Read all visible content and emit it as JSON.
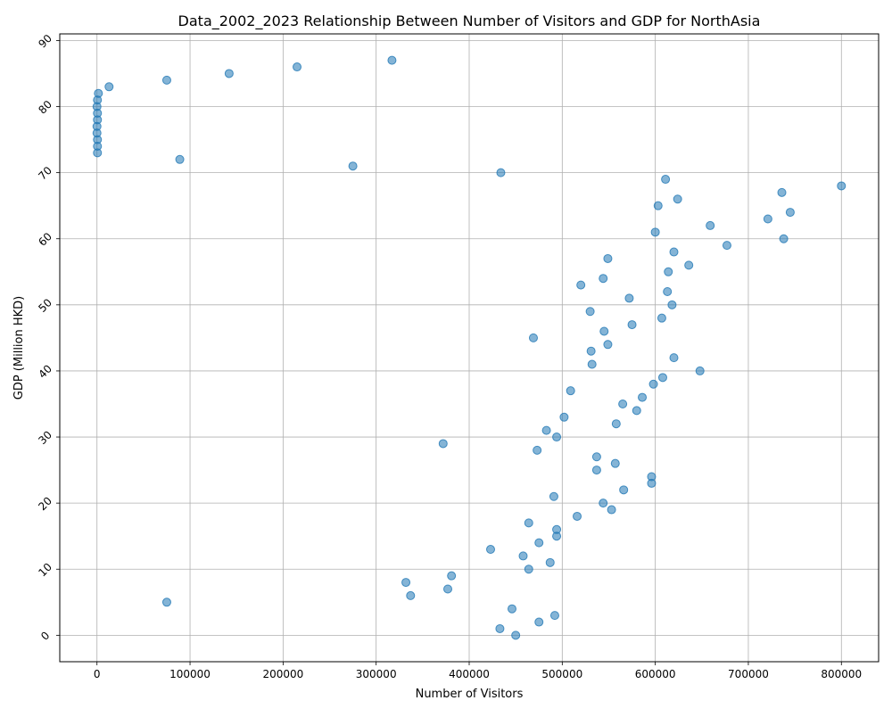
{
  "chart_data": {
    "type": "scatter",
    "title": "Data_2002_2023 Relationship Between Number of Visitors and GDP for NorthAsia",
    "xlabel": "Number of Visitors",
    "ylabel": "GDP (Million HKD)",
    "xlim": [
      -40000,
      840000
    ],
    "ylim": [
      -4,
      91
    ],
    "xticks": [
      0,
      100000,
      200000,
      300000,
      400000,
      500000,
      600000,
      700000,
      800000
    ],
    "yticks": [
      0,
      10,
      20,
      30,
      40,
      50,
      60,
      70,
      80,
      90
    ],
    "grid": true,
    "marker_color": "#1f77b4",
    "points": [
      [
        450000,
        0
      ],
      [
        433000,
        1
      ],
      [
        475000,
        2
      ],
      [
        492000,
        3
      ],
      [
        446000,
        4
      ],
      [
        75000,
        5
      ],
      [
        337000,
        6
      ],
      [
        377000,
        7
      ],
      [
        332000,
        8
      ],
      [
        381000,
        9
      ],
      [
        464000,
        10
      ],
      [
        487000,
        11
      ],
      [
        458000,
        12
      ],
      [
        423000,
        13
      ],
      [
        475000,
        14
      ],
      [
        494000,
        15
      ],
      [
        494000,
        16
      ],
      [
        464000,
        17
      ],
      [
        516000,
        18
      ],
      [
        553000,
        19
      ],
      [
        544000,
        20
      ],
      [
        491000,
        21
      ],
      [
        566000,
        22
      ],
      [
        596000,
        23
      ],
      [
        596000,
        24
      ],
      [
        537000,
        25
      ],
      [
        557000,
        26
      ],
      [
        537000,
        27
      ],
      [
        473000,
        28
      ],
      [
        372000,
        29
      ],
      [
        494000,
        30
      ],
      [
        483000,
        31
      ],
      [
        558000,
        32
      ],
      [
        502000,
        33
      ],
      [
        580000,
        34
      ],
      [
        565000,
        35
      ],
      [
        586000,
        36
      ],
      [
        509000,
        37
      ],
      [
        598000,
        38
      ],
      [
        608000,
        39
      ],
      [
        648000,
        40
      ],
      [
        532000,
        41
      ],
      [
        620000,
        42
      ],
      [
        531000,
        43
      ],
      [
        549000,
        44
      ],
      [
        469000,
        45
      ],
      [
        545000,
        46
      ],
      [
        575000,
        47
      ],
      [
        607000,
        48
      ],
      [
        530000,
        49
      ],
      [
        618000,
        50
      ],
      [
        572000,
        51
      ],
      [
        613000,
        52
      ],
      [
        520000,
        53
      ],
      [
        544000,
        54
      ],
      [
        614000,
        55
      ],
      [
        636000,
        56
      ],
      [
        549000,
        57
      ],
      [
        620000,
        58
      ],
      [
        677000,
        59
      ],
      [
        738000,
        60
      ],
      [
        600000,
        61
      ],
      [
        659000,
        62
      ],
      [
        721000,
        63
      ],
      [
        745000,
        64
      ],
      [
        603000,
        65
      ],
      [
        624000,
        66
      ],
      [
        736000,
        67
      ],
      [
        800000,
        68
      ],
      [
        611000,
        69
      ],
      [
        434000,
        70
      ],
      [
        275000,
        71
      ],
      [
        89000,
        72
      ],
      [
        500,
        73
      ],
      [
        500,
        74
      ],
      [
        500,
        75
      ],
      [
        0,
        76
      ],
      [
        0,
        77
      ],
      [
        500,
        78
      ],
      [
        500,
        79
      ],
      [
        0,
        80
      ],
      [
        500,
        81
      ],
      [
        1500,
        82
      ],
      [
        13000,
        83
      ],
      [
        75000,
        84
      ],
      [
        142000,
        85
      ],
      [
        215000,
        86
      ],
      [
        317000,
        87
      ]
    ]
  }
}
